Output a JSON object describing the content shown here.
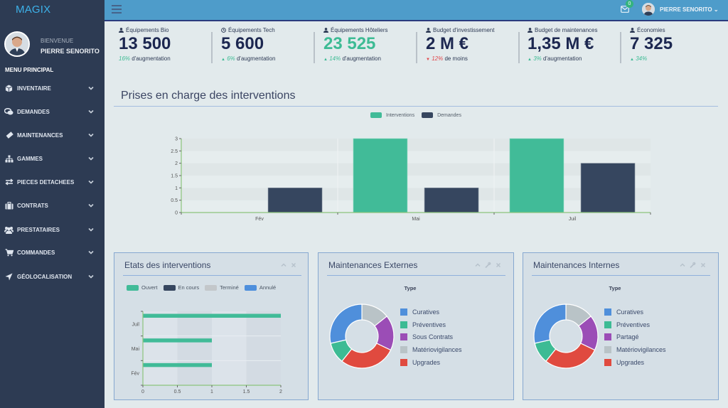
{
  "app": {
    "title": "MAGIX"
  },
  "sidebar": {
    "welcome": "BIENVENUE",
    "user": "PIERRE SENORITO",
    "menu_title": "MENU PRINCIPAL",
    "items": [
      {
        "label": "INVENTAIRE",
        "icon": "cube-icon"
      },
      {
        "label": "DEMANDES",
        "icon": "comments-icon"
      },
      {
        "label": "MAINTENANCES",
        "icon": "ticket-icon"
      },
      {
        "label": "GAMMES",
        "icon": "sitemap-icon"
      },
      {
        "label": "PIECES DETACHEES",
        "icon": "exchange-icon"
      },
      {
        "label": "CONTRATS",
        "icon": "briefcase-icon"
      },
      {
        "label": "PRESTATAIRES",
        "icon": "users-icon"
      },
      {
        "label": "COMMANDES",
        "icon": "cart-icon"
      },
      {
        "label": "GÉOLOCALISATION",
        "icon": "location-arrow-icon"
      }
    ]
  },
  "topbar": {
    "notification_count": "0",
    "user": "PIERRE SENORITO ⌄"
  },
  "stats": [
    {
      "icon": "user-icon",
      "label": "Équipements Bio",
      "value": "13 500",
      "arrow": "",
      "pct": "16%",
      "text": "d'augmentation",
      "trend": "up"
    },
    {
      "icon": "clock-icon",
      "label": "Équipements Tech",
      "value": "5 600",
      "arrow": "▲",
      "pct": "6%",
      "text": "d'augmentation",
      "trend": "up"
    },
    {
      "icon": "user-icon",
      "label": "Équipements Hôteliers",
      "value": "23 525",
      "arrow": "▲",
      "pct": "14%",
      "text": "d'augmentation",
      "trend": "up"
    },
    {
      "icon": "user-icon",
      "label": "Budget d'investissement",
      "value": "2 M €",
      "arrow": "▼",
      "pct": "12%",
      "text": "de moins",
      "trend": "down"
    },
    {
      "icon": "user-icon",
      "label": "Budget de maintenances",
      "value": "1,35 M €",
      "arrow": "▲",
      "pct": "3%",
      "text": "d'augmentation",
      "trend": "up"
    },
    {
      "icon": "user-icon",
      "label": "Économies",
      "value": "7 325",
      "arrow": "▲",
      "pct": "34%",
      "text": "",
      "trend": "up"
    }
  ],
  "colors": {
    "accent": "#3dbb94",
    "dark": "#36465f",
    "danger": "#e2474b",
    "topbar": "#4e9cca",
    "sidebar": "#2d3b53"
  },
  "chart_data": [
    {
      "type": "bar",
      "title": "Prises en charge des interventions",
      "categories": [
        "Fév",
        "Mai",
        "Juil"
      ],
      "series": [
        {
          "name": "Interventions",
          "color": "#41bb98",
          "values": [
            0,
            3,
            3
          ]
        },
        {
          "name": "Demandes",
          "color": "#36465f",
          "values": [
            1,
            1,
            2
          ]
        }
      ],
      "ylim": [
        0,
        3
      ],
      "yticks": [
        "0",
        "0.5",
        "1",
        "1.5",
        "2",
        "2.5",
        "3"
      ],
      "xlabel": "",
      "ylabel": "",
      "legend": "top-center",
      "grid": true
    },
    {
      "type": "bar",
      "orientation": "horizontal",
      "title": "Etats des interventions",
      "categories": [
        "Juil",
        "Mai",
        "Fév"
      ],
      "series": [
        {
          "name": "Ouvert",
          "color": "#41bb98",
          "values": [
            2,
            1,
            1
          ]
        },
        {
          "name": "En cours",
          "color": "#36465f",
          "values": [
            0,
            0,
            0
          ]
        },
        {
          "name": "Terminé",
          "color": "#c3c7ca",
          "values": [
            0,
            0,
            0
          ]
        },
        {
          "name": "Annulé",
          "color": "#4e8fdc",
          "values": [
            0,
            0,
            0
          ]
        }
      ],
      "xlim": [
        0,
        2
      ],
      "xticks": [
        "0",
        "0.5",
        "1",
        "1.5",
        "2"
      ],
      "legend": "top-left",
      "grid": true
    },
    {
      "type": "pie",
      "title": "Maintenances Externes",
      "subtitle": "Type",
      "labels": [
        "Curatives",
        "Préventives",
        "Sous Contrats",
        "Matériovigilances",
        "Upgrades"
      ],
      "values": [
        8,
        3,
        5,
        4,
        8
      ],
      "colors": [
        "#4f8fdb",
        "#3dbb94",
        "#9b4db6",
        "#b9c3c7",
        "#e04a3f"
      ],
      "legend": "right"
    },
    {
      "type": "pie",
      "title": "Maintenances Internes",
      "subtitle": "Type",
      "labels": [
        "Curatives",
        "Préventives",
        "Partagé",
        "Matériovigilances",
        "Upgrades"
      ],
      "values": [
        8,
        3,
        5,
        4,
        8
      ],
      "colors": [
        "#4f8fdb",
        "#3dbb94",
        "#9b4db6",
        "#b9c3c7",
        "#e04a3f"
      ],
      "legend": "right"
    }
  ]
}
